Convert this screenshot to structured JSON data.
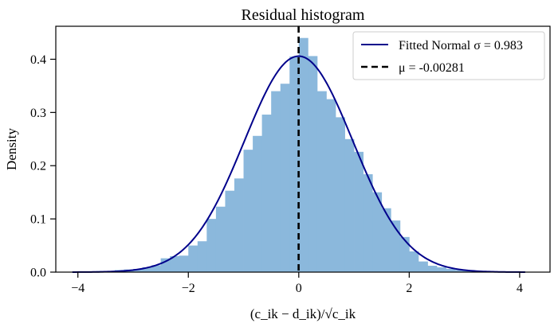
{
  "chart_data": {
    "type": "histogram",
    "title": "Residual histogram",
    "xlabel": "(c_ik − d_ik)/√c_ik",
    "ylabel": "Density",
    "xlim": [
      -4.4,
      4.55
    ],
    "ylim": [
      0,
      0.462
    ],
    "xticks": [
      -4,
      -2,
      0,
      2,
      4
    ],
    "xtick_labels": [
      "−4",
      "−2",
      "0",
      "2",
      "4"
    ],
    "yticks": [
      0,
      0.1,
      0.2,
      0.3,
      0.4
    ],
    "ytick_labels": [
      "0.0",
      "0.1",
      "0.2",
      "0.3",
      "0.4"
    ],
    "grid": false,
    "legend_position": "top-right",
    "bin_width": 0.1667,
    "bins": [
      {
        "x0": -4.0,
        "height": 0.001
      },
      {
        "x0": -3.833,
        "height": 0.001
      },
      {
        "x0": -3.667,
        "height": 0.002
      },
      {
        "x0": -3.5,
        "height": 0.002
      },
      {
        "x0": -3.333,
        "height": 0.004
      },
      {
        "x0": -3.167,
        "height": 0.005
      },
      {
        "x0": -3.0,
        "height": 0.006
      },
      {
        "x0": -2.833,
        "height": 0.009
      },
      {
        "x0": -2.667,
        "height": 0.013
      },
      {
        "x0": -2.5,
        "height": 0.026
      },
      {
        "x0": -2.333,
        "height": 0.03
      },
      {
        "x0": -2.167,
        "height": 0.031
      },
      {
        "x0": -2.0,
        "height": 0.05
      },
      {
        "x0": -1.833,
        "height": 0.058
      },
      {
        "x0": -1.667,
        "height": 0.1
      },
      {
        "x0": -1.5,
        "height": 0.123
      },
      {
        "x0": -1.333,
        "height": 0.153
      },
      {
        "x0": -1.167,
        "height": 0.176
      },
      {
        "x0": -1.0,
        "height": 0.23
      },
      {
        "x0": -0.833,
        "height": 0.256
      },
      {
        "x0": -0.667,
        "height": 0.296
      },
      {
        "x0": -0.5,
        "height": 0.34
      },
      {
        "x0": -0.333,
        "height": 0.354
      },
      {
        "x0": -0.167,
        "height": 0.405
      },
      {
        "x0": 0.0,
        "height": 0.44
      },
      {
        "x0": 0.167,
        "height": 0.406
      },
      {
        "x0": 0.333,
        "height": 0.34
      },
      {
        "x0": 0.5,
        "height": 0.325
      },
      {
        "x0": 0.667,
        "height": 0.291
      },
      {
        "x0": 0.833,
        "height": 0.25
      },
      {
        "x0": 1.0,
        "height": 0.226
      },
      {
        "x0": 1.167,
        "height": 0.184
      },
      {
        "x0": 1.333,
        "height": 0.15
      },
      {
        "x0": 1.5,
        "height": 0.12
      },
      {
        "x0": 1.667,
        "height": 0.097
      },
      {
        "x0": 1.833,
        "height": 0.066
      },
      {
        "x0": 2.0,
        "height": 0.039
      },
      {
        "x0": 2.167,
        "height": 0.02
      },
      {
        "x0": 2.333,
        "height": 0.012
      },
      {
        "x0": 2.5,
        "height": 0.009
      },
      {
        "x0": 2.667,
        "height": 0.006
      },
      {
        "x0": 2.833,
        "height": 0.004
      },
      {
        "x0": 3.0,
        "height": 0.003
      },
      {
        "x0": 3.167,
        "height": 0.002
      },
      {
        "x0": 3.333,
        "height": 0.001
      }
    ],
    "series": [
      {
        "name": "Fitted Normal σ = 0.983",
        "kind": "line",
        "mu": -0.00281,
        "sigma": 0.983,
        "x_range": [
          -4.1,
          4.1
        ]
      },
      {
        "name": "μ = -0.00281",
        "kind": "vline",
        "x": -0.00281
      }
    ],
    "colors": {
      "bars": "#8bb8dc",
      "fit_line": "#00008b",
      "mean_line": "#000000",
      "axis": "#000000"
    }
  }
}
